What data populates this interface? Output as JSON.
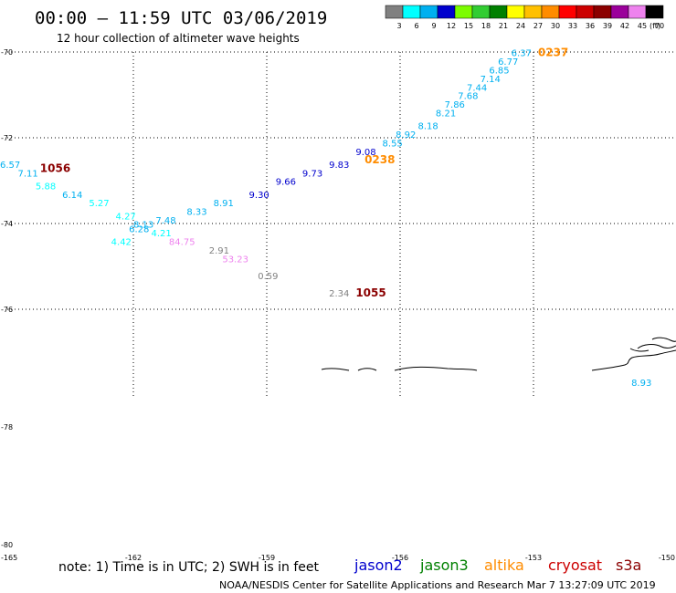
{
  "header": {
    "title": "00:00 – 11:59 UTC 03/06/2019",
    "subtitle": "12 hour collection of altimeter wave heights"
  },
  "colorbar": {
    "labels": [
      "3",
      "6",
      "9",
      "12",
      "15",
      "18",
      "21",
      "24",
      "27",
      "30",
      "33",
      "36",
      "39",
      "42",
      "45",
      "70"
    ],
    "unit": "(ft)",
    "colors": [
      "#808080",
      "#00ffff",
      "#00b0f0",
      "#0000cd",
      "#7cfc00",
      "#32cd32",
      "#008000",
      "#ffff00",
      "#ffc000",
      "#ff8c00",
      "#ff0000",
      "#cc0000",
      "#8b0000",
      "#9b009b",
      "#ee82ee",
      "#000000"
    ]
  },
  "footer": {
    "note": "note:  1) Time is in UTC;  2) SWH is in feet",
    "credit": "NOAA/NESDIS Center for Satellite Applications and Research     Mar  7 13:27:09 UTC 2019",
    "legend": [
      {
        "name": "jason2",
        "color": "#0000cd"
      },
      {
        "name": "jason3",
        "color": "#008000"
      },
      {
        "name": "altika",
        "color": "#ff8c00"
      },
      {
        "name": "cryosat",
        "color": "#cc0000"
      },
      {
        "name": "s3a",
        "color": "#8b0000"
      }
    ]
  },
  "chart_data": {
    "type": "scatter",
    "title": "00:00 – 11:59 UTC 03/06/2019",
    "subtitle": "12 hour collection of altimeter wave heights",
    "x_ticks": [
      "-165",
      "-162",
      "-159",
      "-156",
      "-153",
      "-150"
    ],
    "y_ticks": [
      "-70",
      "-72",
      "-74",
      "-76",
      "-78",
      "-80"
    ],
    "y_ticks_gridded": [
      "-70",
      "-72",
      "-74",
      "-76"
    ],
    "grid": true,
    "grid_style": "dotted",
    "points": [
      {
        "lon": -153.5,
        "lat": -70.1,
        "swh": "6.37",
        "color": "#00b0f0"
      },
      {
        "lon": -153.8,
        "lat": -70.3,
        "swh": "6.77",
        "color": "#00b0f0"
      },
      {
        "lon": -154.0,
        "lat": -70.5,
        "swh": "6.85",
        "color": "#00b0f0"
      },
      {
        "lon": -154.2,
        "lat": -70.7,
        "swh": "7.14",
        "color": "#00b0f0"
      },
      {
        "lon": -154.5,
        "lat": -70.9,
        "swh": "7.44",
        "color": "#00b0f0"
      },
      {
        "lon": -154.7,
        "lat": -71.1,
        "swh": "7.68",
        "color": "#00b0f0"
      },
      {
        "lon": -155.0,
        "lat": -71.3,
        "swh": "7.86",
        "color": "#00b0f0"
      },
      {
        "lon": -155.2,
        "lat": -71.5,
        "swh": "8.21",
        "color": "#00b0f0"
      },
      {
        "lon": -155.6,
        "lat": -71.8,
        "swh": "8.18",
        "color": "#00b0f0"
      },
      {
        "lon": -156.1,
        "lat": -72.0,
        "swh": "8.92",
        "color": "#00b0f0"
      },
      {
        "lon": -156.4,
        "lat": -72.2,
        "swh": "8.55",
        "color": "#00b0f0"
      },
      {
        "lon": -157.0,
        "lat": -72.4,
        "swh": "9.08",
        "color": "#0000cd"
      },
      {
        "lon": -157.6,
        "lat": -72.7,
        "swh": "9.83",
        "color": "#0000cd"
      },
      {
        "lon": -158.2,
        "lat": -72.9,
        "swh": "9.73",
        "color": "#0000cd"
      },
      {
        "lon": -158.8,
        "lat": -73.1,
        "swh": "9.66",
        "color": "#0000cd"
      },
      {
        "lon": -159.4,
        "lat": -73.4,
        "swh": "9.30",
        "color": "#0000cd"
      },
      {
        "lon": -160.2,
        "lat": -73.6,
        "swh": "8.91",
        "color": "#00b0f0"
      },
      {
        "lon": -160.8,
        "lat": -73.8,
        "swh": "8.33",
        "color": "#00b0f0"
      },
      {
        "lon": -161.5,
        "lat": -74.0,
        "swh": "7.48",
        "color": "#00b0f0"
      },
      {
        "lon": -162.0,
        "lat": -74.1,
        "swh": "8.13",
        "color": "#00b0f0"
      },
      {
        "lon": -162.4,
        "lat": -73.9,
        "swh": "4.27",
        "color": "#00ffff"
      },
      {
        "lon": -162.1,
        "lat": -74.2,
        "swh": "6.28",
        "color": "#00b0f0"
      },
      {
        "lon": -161.6,
        "lat": -74.3,
        "swh": "4.21",
        "color": "#00ffff"
      },
      {
        "lon": -162.5,
        "lat": -74.5,
        "swh": "4.42",
        "color": "#00ffff"
      },
      {
        "lon": -163.0,
        "lat": -73.6,
        "swh": "5.27",
        "color": "#00ffff"
      },
      {
        "lon": -163.6,
        "lat": -73.4,
        "swh": "6.14",
        "color": "#00b0f0"
      },
      {
        "lon": -164.2,
        "lat": -73.2,
        "swh": "5.88",
        "color": "#00ffff"
      },
      {
        "lon": -164.6,
        "lat": -72.9,
        "swh": "7.11",
        "color": "#00b0f0"
      },
      {
        "lon": -165.0,
        "lat": -72.7,
        "swh": "6.57",
        "color": "#00b0f0"
      },
      {
        "lon": -161.2,
        "lat": -74.5,
        "swh": "84.75",
        "color": "#ee82ee"
      },
      {
        "lon": -160.3,
        "lat": -74.7,
        "swh": "2.91",
        "color": "#808080"
      },
      {
        "lon": -160.0,
        "lat": -74.9,
        "swh": "53.23",
        "color": "#ee82ee"
      },
      {
        "lon": -159.2,
        "lat": -75.3,
        "swh": "0.59",
        "color": "#808080"
      },
      {
        "lon": -157.6,
        "lat": -75.7,
        "swh": "2.34",
        "color": "#808080"
      },
      {
        "lon": -150.8,
        "lat": -77.3,
        "swh": "8.93",
        "color": "#00b0f0"
      }
    ],
    "time_labels": [
      {
        "text": "0237",
        "lon": -152.9,
        "lat": -70.1,
        "color": "#ff8c00"
      },
      {
        "text": "0238",
        "lon": -156.8,
        "lat": -72.6,
        "color": "#ff8c00"
      },
      {
        "text": "1056",
        "lon": -164.1,
        "lat": -72.8,
        "color": "#8b0000"
      },
      {
        "text": "1055",
        "lon": -157.0,
        "lat": -75.7,
        "color": "#8b0000"
      }
    ]
  }
}
